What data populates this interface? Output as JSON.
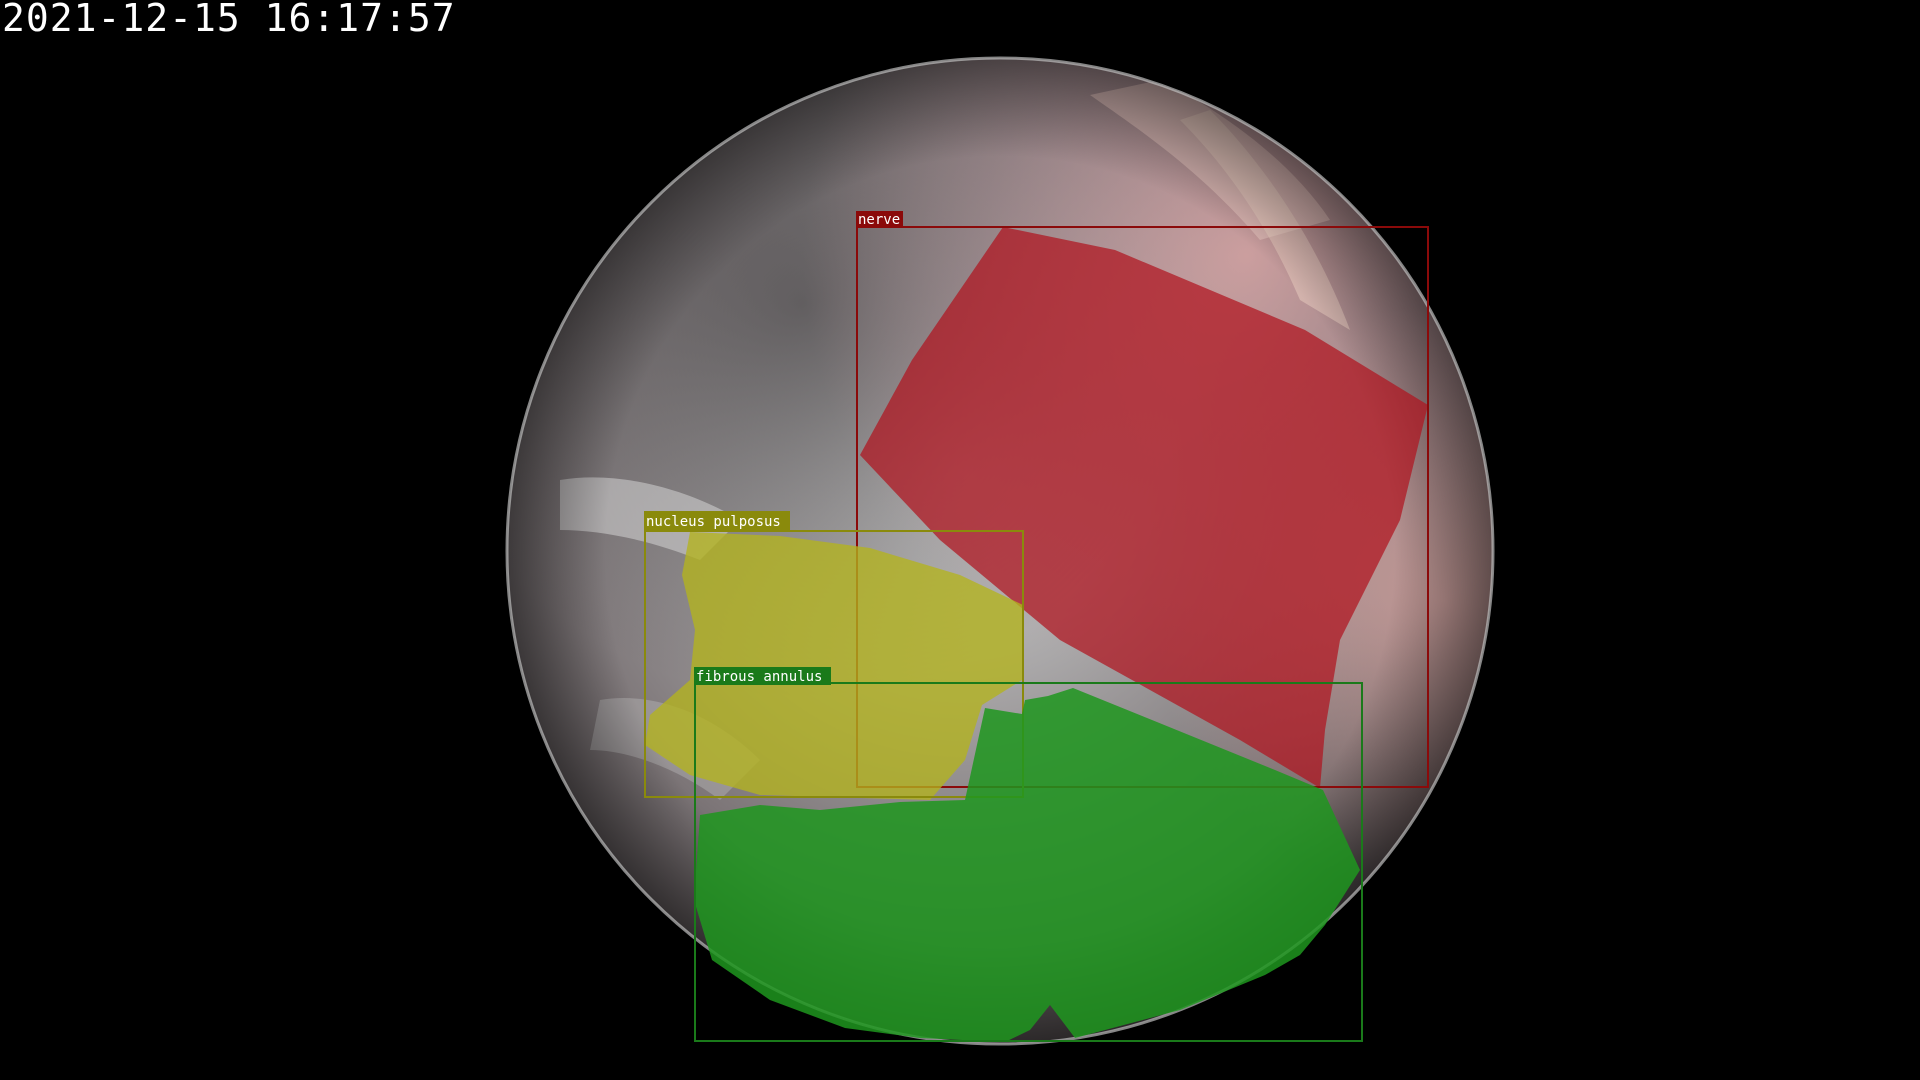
{
  "overlay": {
    "timestamp": "2021-12-15 16:17:57"
  },
  "annotations": [
    {
      "id": "nerve",
      "label": "nerve",
      "color": "#8b0a0a",
      "fill": "#b0141e"
    },
    {
      "id": "nucleus",
      "label": "nucleus pulposus",
      "color": "#8a8a0c",
      "fill": "#b4b41e"
    },
    {
      "id": "annulus",
      "label": "fibrous annulus",
      "color": "#1a7a1a",
      "fill": "#1f961f"
    }
  ]
}
